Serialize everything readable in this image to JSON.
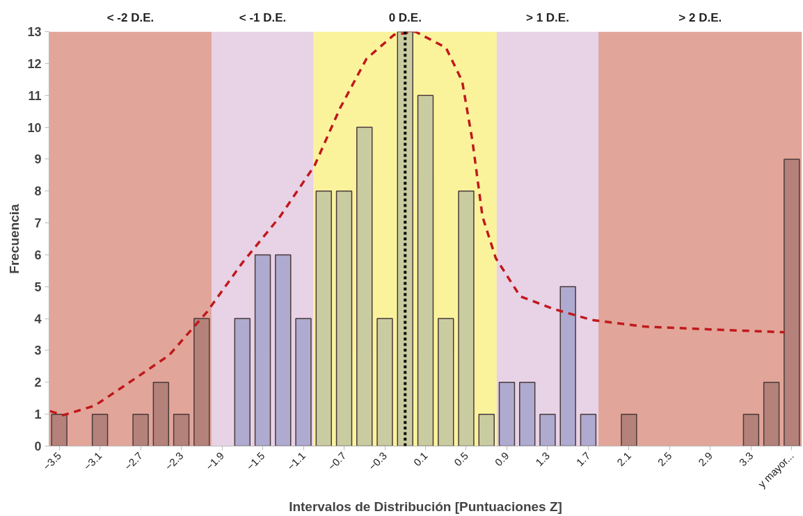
{
  "chart_data": {
    "type": "bar",
    "xlabel": "Intervalos de Distribución [Puntuaciones Z]",
    "ylabel": "Frecuencia",
    "xlim": [
      -3.6,
      3.8
    ],
    "ylim": [
      0,
      13
    ],
    "xticks": [
      -3.5,
      -3.1,
      -2.7,
      -2.3,
      -1.9,
      -1.5,
      -1.1,
      -0.7,
      -0.3,
      0.1,
      0.5,
      0.9,
      1.3,
      1.7,
      2.1,
      2.5,
      2.9,
      3.3,
      {
        "value": 3.7,
        "label": "y mayor..."
      }
    ],
    "yticks": [
      0,
      1,
      2,
      3,
      4,
      5,
      6,
      7,
      8,
      9,
      10,
      11,
      12,
      13
    ],
    "grid": false,
    "series": [
      {
        "x": [
          -3.5,
          -3.3,
          -3.1,
          -2.9,
          -2.7,
          -2.5,
          -2.3,
          -2.1,
          -1.9,
          -1.7,
          -1.5,
          -1.3,
          -1.1,
          -0.9,
          -0.7,
          -0.5,
          -0.3,
          -0.1,
          0.1,
          0.3,
          0.5,
          0.7,
          0.9,
          1.1,
          1.3,
          1.5,
          1.7,
          1.9,
          2.1,
          2.3,
          2.5,
          2.7,
          2.9,
          3.1,
          3.3,
          3.5,
          3.7
        ],
        "values": [
          1,
          null,
          1,
          null,
          1,
          2,
          1,
          4,
          null,
          4,
          6,
          6,
          4,
          8,
          8,
          10,
          4,
          13,
          11,
          4,
          8,
          1,
          2,
          2,
          1,
          5,
          1,
          null,
          1,
          null,
          null,
          null,
          null,
          null,
          1,
          2,
          9
        ],
        "colors": [
          "#b4827a",
          "#b4827a",
          "#b4827a",
          "#b4827a",
          "#b4827a",
          "#b4827a",
          "#b4827a",
          "#b4827a",
          "#b4827a",
          "#aeaad0",
          "#aeaad0",
          "#aeaad0",
          "#aeaad0",
          "#c8cca0",
          "#c8cca0",
          "#c8cca0",
          "#c8cca0",
          "#c8cca0",
          "#c8cca0",
          "#c8cca0",
          "#c8cca0",
          "#c8cca0",
          "#aeaad0",
          "#aeaad0",
          "#aeaad0",
          "#aeaad0",
          "#aeaad0",
          "#b4827a",
          "#b4827a",
          "#b4827a",
          "#b4827a",
          "#b4827a",
          "#b4827a",
          "#b4827a",
          "#b4827a",
          "#b4827a",
          "#b4827a"
        ]
      },
      {
        "type": "line",
        "color": "#c0181c",
        "line_style": "dashed",
        "x": [
          -3.59,
          -3.46,
          -3.15,
          -2.81,
          -2.42,
          -2.05,
          -1.7,
          -1.33,
          -0.99,
          -0.74,
          -0.48,
          -0.21,
          0.0,
          0.3,
          0.46,
          0.56,
          0.66,
          0.79,
          1.03,
          1.36,
          1.73,
          2.25,
          2.9,
          3.63
        ],
        "values": [
          1.1,
          0.97,
          1.27,
          2.0,
          2.85,
          4.2,
          5.75,
          7.2,
          8.8,
          10.6,
          12.15,
          12.9,
          13.0,
          12.5,
          11.45,
          9.6,
          7.2,
          5.9,
          4.7,
          4.3,
          3.96,
          3.75,
          3.66,
          3.57
        ]
      }
    ],
    "ref_lines": [
      {
        "axis": "x",
        "value": -0.1,
        "color": "#000000",
        "line_style": "dotted"
      }
    ],
    "bands": [
      {
        "axis": "x",
        "from": -3.6,
        "to": -2.0,
        "label": "< -2 D.E.",
        "color": "#e2a599"
      },
      {
        "axis": "x",
        "from": -2.0,
        "to": -1.0,
        "label": "< -1 D.E.",
        "color": "#e8d2e6"
      },
      {
        "axis": "x",
        "from": -1.0,
        "to": 0.8,
        "label": "0 D.E.",
        "color": "#fbf39c"
      },
      {
        "axis": "x",
        "from": 0.8,
        "to": 1.8,
        "label": "> 1 D.E.",
        "color": "#e8d2e6"
      },
      {
        "axis": "x",
        "from": 1.8,
        "to": 3.8,
        "label": "> 2 D.E.",
        "color": "#e2a599"
      }
    ]
  }
}
